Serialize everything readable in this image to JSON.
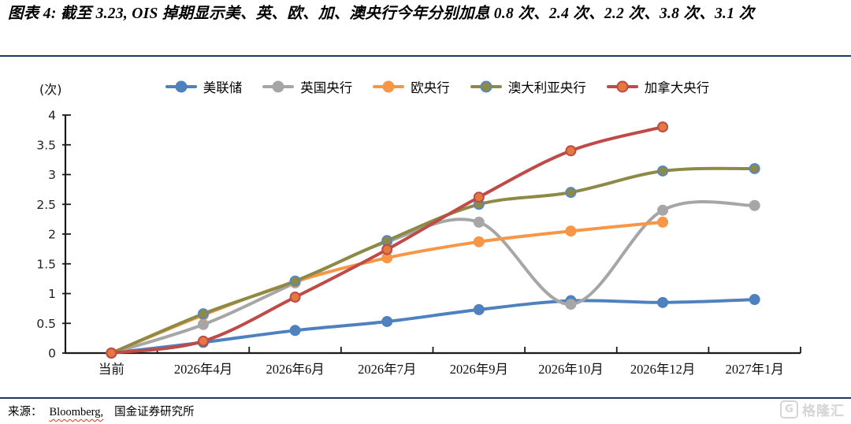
{
  "chart_data": {
    "type": "line",
    "title": "图表 4: 截至 3.23, OIS 掉期显示美、英、欧、加、澳央行今年分别加息 0.8 次、2.4 次、2.2 次、3.8 次、3.1 次",
    "ylabel": "(次)",
    "xlabel": "",
    "ylim": [
      0,
      4
    ],
    "ytick_step": 0.5,
    "grid": false,
    "legend_position": "top",
    "categories": [
      "当前",
      "2026年4月",
      "2026年6月",
      "2026年7月",
      "2026年9月",
      "2026年10月",
      "2026年12月",
      "2027年1月"
    ],
    "series": [
      {
        "id": "fed",
        "name": "美联储",
        "color": "#4E81BD",
        "marker_fill": "#4E81BD",
        "marker_stroke": "#4E81BD",
        "values": [
          0,
          0.18,
          0.38,
          0.53,
          0.73,
          0.88,
          0.85,
          0.9
        ]
      },
      {
        "id": "boe",
        "name": "英国央行",
        "color": "#A6A6A6",
        "marker_fill": "#A6A6A6",
        "marker_stroke": "#A6A6A6",
        "values": [
          0,
          0.48,
          1.18,
          1.87,
          2.2,
          0.82,
          2.4,
          2.48
        ]
      },
      {
        "id": "ecb",
        "name": "欧央行",
        "color": "#F79646",
        "marker_fill": "#F79646",
        "marker_stroke": "#F79646",
        "values": [
          0,
          0.64,
          1.2,
          1.6,
          1.87,
          2.05,
          2.2,
          null
        ]
      },
      {
        "id": "rba",
        "name": "澳大利亚央行",
        "color": "#8C8A45",
        "marker_fill": "#8C8A45",
        "marker_stroke": "#5B88BB",
        "values": [
          0,
          0.66,
          1.21,
          1.89,
          2.5,
          2.7,
          3.06,
          3.1
        ]
      },
      {
        "id": "boc",
        "name": "加拿大央行",
        "color": "#BE4B48",
        "marker_fill": "#E2793F",
        "marker_stroke": "#BE4B48",
        "values": [
          0,
          0.2,
          0.94,
          1.74,
          2.62,
          3.4,
          3.8,
          null
        ]
      }
    ]
  },
  "footer": {
    "label": "来源：",
    "source1": "Bloomberg,",
    "source2": "国金证券研究所"
  },
  "watermark": {
    "icon": "G",
    "text": "格隆汇"
  }
}
